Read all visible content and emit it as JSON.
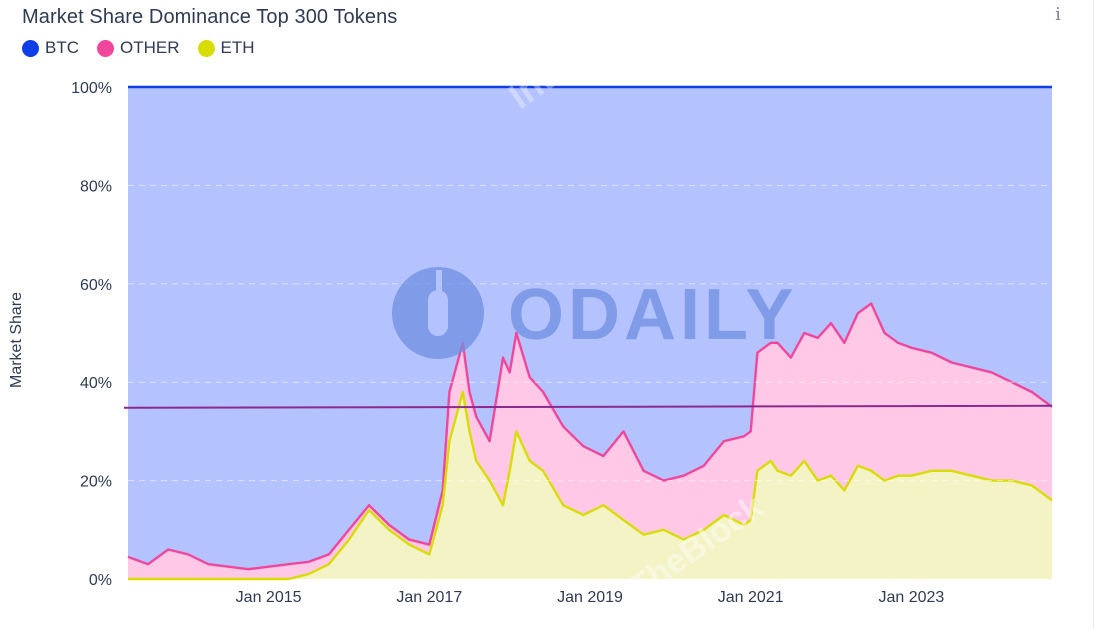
{
  "header": {
    "title": "Market Share Dominance Top 300 Tokens",
    "info_glyph": "i"
  },
  "watermarks": {
    "main": "ODAILY",
    "faint_1": "IntoThe",
    "faint_2": "Block",
    "faint_3": "TheBlock"
  },
  "chart_data": {
    "type": "area",
    "stacked": true,
    "title": "Market Share Dominance Top 300 Tokens",
    "ylabel": "Market Share",
    "xlabel": "",
    "ylim": [
      0,
      100
    ],
    "xlim": [
      "2013-04",
      "2024-10"
    ],
    "y_ticks": [
      "0%",
      "20%",
      "40%",
      "60%",
      "80%",
      "100%"
    ],
    "y_tick_values": [
      0,
      20,
      40,
      60,
      80,
      100
    ],
    "x_ticks": [
      "Jan 2015",
      "Jan 2017",
      "Jan 2019",
      "Jan 2021",
      "Jan 2023"
    ],
    "x_tick_dates": [
      "2015-01",
      "2017-01",
      "2019-01",
      "2021-01",
      "2023-01"
    ],
    "grid": true,
    "legend_position": "top-left",
    "reference_line": 35,
    "series": [
      {
        "name": "BTC",
        "color": "#0d3ee8",
        "fill": "#b4c2fd"
      },
      {
        "name": "OTHER",
        "color": "#f0479d",
        "fill": "#ffc8e7"
      },
      {
        "name": "ETH",
        "color": "#d9dc00",
        "fill": "#f3f3c5"
      }
    ],
    "dates": [
      "2013-04",
      "2013-07",
      "2013-10",
      "2014-01",
      "2014-04",
      "2014-07",
      "2014-10",
      "2015-01",
      "2015-04",
      "2015-07",
      "2015-10",
      "2016-01",
      "2016-04",
      "2016-07",
      "2016-10",
      "2017-01",
      "2017-03",
      "2017-04",
      "2017-06",
      "2017-07",
      "2017-08",
      "2017-10",
      "2017-12",
      "2018-01",
      "2018-02",
      "2018-04",
      "2018-06",
      "2018-09",
      "2018-12",
      "2019-03",
      "2019-06",
      "2019-09",
      "2019-12",
      "2020-03",
      "2020-06",
      "2020-09",
      "2020-12",
      "2021-01",
      "2021-02",
      "2021-04",
      "2021-05",
      "2021-07",
      "2021-09",
      "2021-11",
      "2022-01",
      "2022-03",
      "2022-05",
      "2022-07",
      "2022-09",
      "2022-11",
      "2023-01",
      "2023-04",
      "2023-07",
      "2023-10",
      "2024-01",
      "2024-04",
      "2024-07",
      "2024-10"
    ],
    "eth_share": [
      0,
      0,
      0,
      0,
      0,
      0,
      0,
      0,
      0,
      1,
      3,
      8,
      14,
      10,
      7,
      5,
      15,
      28,
      38,
      30,
      24,
      20,
      15,
      22,
      30,
      24,
      22,
      15,
      13,
      15,
      12,
      9,
      10,
      8,
      10,
      13,
      11,
      12,
      22,
      24,
      22,
      21,
      24,
      20,
      21,
      18,
      23,
      22,
      20,
      21,
      21,
      22,
      22,
      21,
      20,
      20,
      19,
      16
    ],
    "other_share": [
      4.5,
      3,
      6,
      5,
      3,
      2.5,
      2,
      2.5,
      3,
      3.5,
      5,
      10,
      15,
      11,
      8,
      7,
      18,
      38,
      48,
      38,
      33,
      28,
      45,
      42,
      50,
      41,
      38,
      31,
      27,
      25,
      30,
      22,
      20,
      21,
      23,
      28,
      29,
      30,
      46,
      48,
      48,
      45,
      50,
      49,
      52,
      48,
      54,
      56,
      50,
      48,
      47,
      46,
      44,
      43,
      42,
      40,
      38,
      35
    ],
    "btc_share_top": 100
  }
}
